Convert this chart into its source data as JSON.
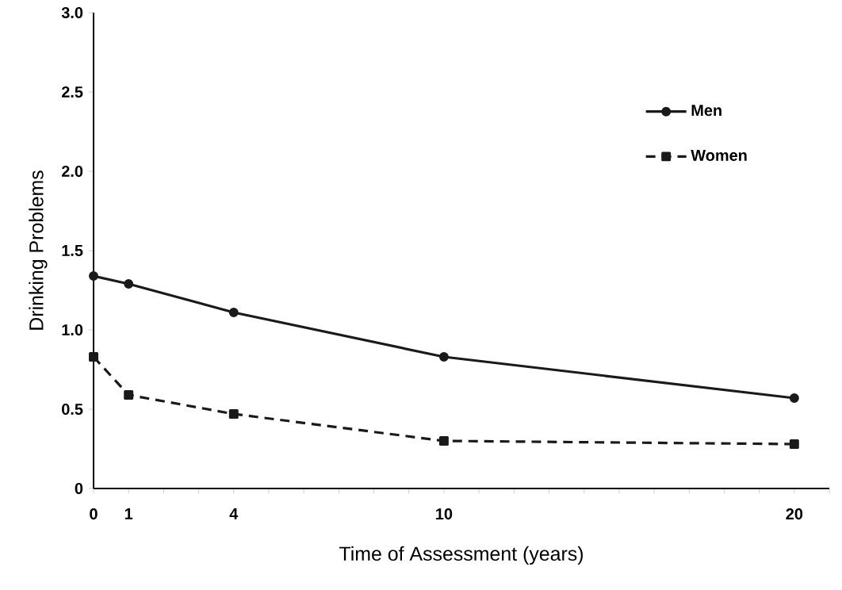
{
  "chart_data": {
    "type": "line",
    "xlabel": "Time of Assessment (years)",
    "ylabel": "Drinking Problems",
    "x": [
      0,
      1,
      4,
      10,
      20
    ],
    "series": [
      {
        "name": "Men",
        "color": "#1a1a1a",
        "values": [
          1.34,
          1.29,
          1.11,
          0.83,
          0.57
        ],
        "marker": "circle",
        "line_style": "solid"
      },
      {
        "name": "Women",
        "color": "#1a1a1a",
        "values": [
          0.83,
          0.59,
          0.47,
          0.3,
          0.28
        ],
        "marker": "square",
        "line_style": "dashed"
      }
    ],
    "xlim": [
      0,
      21
    ],
    "xticks": [
      0,
      1,
      {
        "value": 2,
        "label": null
      },
      {
        "value": 3,
        "label": null
      },
      4,
      {
        "value": 5,
        "label": null
      },
      {
        "value": 6,
        "label": null
      },
      {
        "value": 7,
        "label": null
      },
      {
        "value": 8,
        "label": null
      },
      {
        "value": 9,
        "label": null
      },
      10,
      {
        "value": 11,
        "label": null
      },
      {
        "value": 12,
        "label": null
      },
      {
        "value": 13,
        "label": null
      },
      {
        "value": 14,
        "label": null
      },
      {
        "value": 15,
        "label": null
      },
      {
        "value": 16,
        "label": null
      },
      {
        "value": 17,
        "label": null
      },
      {
        "value": 18,
        "label": null
      },
      {
        "value": 19,
        "label": null
      },
      20,
      {
        "value": 21,
        "label": null
      }
    ],
    "ylim": [
      0,
      3.0
    ],
    "yticks": [
      0,
      {
        "value": 0.5,
        "label": "0.5"
      },
      {
        "value": 1.0,
        "label": "1.0"
      },
      {
        "value": 1.5,
        "label": "1.5"
      },
      {
        "value": 2.0,
        "label": "2.0"
      },
      {
        "value": 2.5,
        "label": "2.5"
      },
      {
        "value": 3.0,
        "label": "3.0"
      }
    ],
    "grid": false,
    "legend": "top right"
  }
}
